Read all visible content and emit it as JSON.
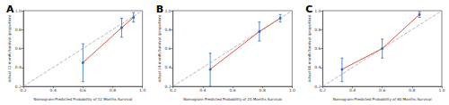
{
  "chart_data": [
    {
      "type": "line",
      "title": "A",
      "x_label": "Nomogram-Predicted Probability of 12 Months Survival",
      "y_label": "Actual 12-month Survival (proportion)",
      "xlim": [
        0.2,
        1.0
      ],
      "ylim": [
        0.2,
        1.0
      ],
      "xticks": [
        0.2,
        0.4,
        0.6,
        0.8,
        {
          "value": 1.0,
          "label": "1.0"
        }
      ],
      "yticks": [
        0.2,
        0.4,
        0.6,
        0.8,
        {
          "value": 1.0,
          "label": "1.0"
        }
      ],
      "grid": false,
      "series": [
        {
          "type": "line",
          "line_style": "dashed",
          "color": "#b0b0b0",
          "marker": "none",
          "x": [
            0.2,
            1.0
          ],
          "values": [
            0.2,
            1.0
          ]
        },
        {
          "type": "line",
          "line_style": "solid",
          "color": "#e0402e",
          "marker": "circle",
          "x": [
            0.6,
            0.86,
            0.94
          ],
          "values": [
            0.45,
            0.82,
            0.93
          ],
          "error_low": [
            0.25,
            0.72,
            0.88
          ],
          "error_high": [
            0.65,
            0.92,
            0.98
          ]
        }
      ]
    },
    {
      "type": "line",
      "title": "B",
      "x_label": "Nomogram-Predicted Probability of 24 Months Survival",
      "y_label": "Actual 24-month Survival (proportion)",
      "xlim": [
        0.2,
        1.0
      ],
      "ylim": [
        0.2,
        1.0
      ],
      "xticks": [
        0.2,
        0.4,
        0.6,
        0.8,
        {
          "value": 1.0,
          "label": "1.0"
        }
      ],
      "yticks": [
        0.2,
        0.4,
        0.6,
        0.8,
        {
          "value": 1.0,
          "label": "1.0"
        }
      ],
      "grid": false,
      "series": [
        {
          "type": "line",
          "line_style": "dashed",
          "color": "#b0b0b0",
          "marker": "none",
          "x": [
            0.2,
            1.0
          ],
          "values": [
            0.2,
            1.0
          ]
        },
        {
          "type": "line",
          "line_style": "solid",
          "color": "#e0402e",
          "marker": "circle",
          "x": [
            0.45,
            0.78,
            0.92
          ],
          "values": [
            0.38,
            0.78,
            0.92
          ],
          "error_low": [
            0.2,
            0.68,
            0.88
          ],
          "error_high": [
            0.55,
            0.88,
            0.96
          ]
        }
      ]
    },
    {
      "type": "line",
      "title": "C",
      "x_label": "Nomogram-Predicted Probability of 60 Months Survival",
      "y_label": "Actual 60-month Survival (proportion)",
      "xlim": [
        0.2,
        1.0
      ],
      "ylim": [
        0.2,
        1.0
      ],
      "xticks": [
        0.2,
        0.4,
        0.6,
        0.8,
        {
          "value": 1.0,
          "label": "1.0"
        }
      ],
      "yticks": [
        0.2,
        0.4,
        0.6,
        0.8,
        {
          "value": 1.0,
          "label": "1.0"
        }
      ],
      "grid": false,
      "series": [
        {
          "type": "line",
          "line_style": "dashed",
          "color": "#b0b0b0",
          "marker": "none",
          "x": [
            0.2,
            1.0
          ],
          "values": [
            0.2,
            1.0
          ]
        },
        {
          "type": "line",
          "line_style": "solid",
          "color": "#e0402e",
          "marker": "circle",
          "x": [
            0.33,
            0.6,
            0.85
          ],
          "values": [
            0.38,
            0.6,
            0.96
          ],
          "error_low": [
            0.25,
            0.5,
            0.93
          ],
          "error_high": [
            0.5,
            0.7,
            0.99
          ]
        }
      ]
    }
  ]
}
